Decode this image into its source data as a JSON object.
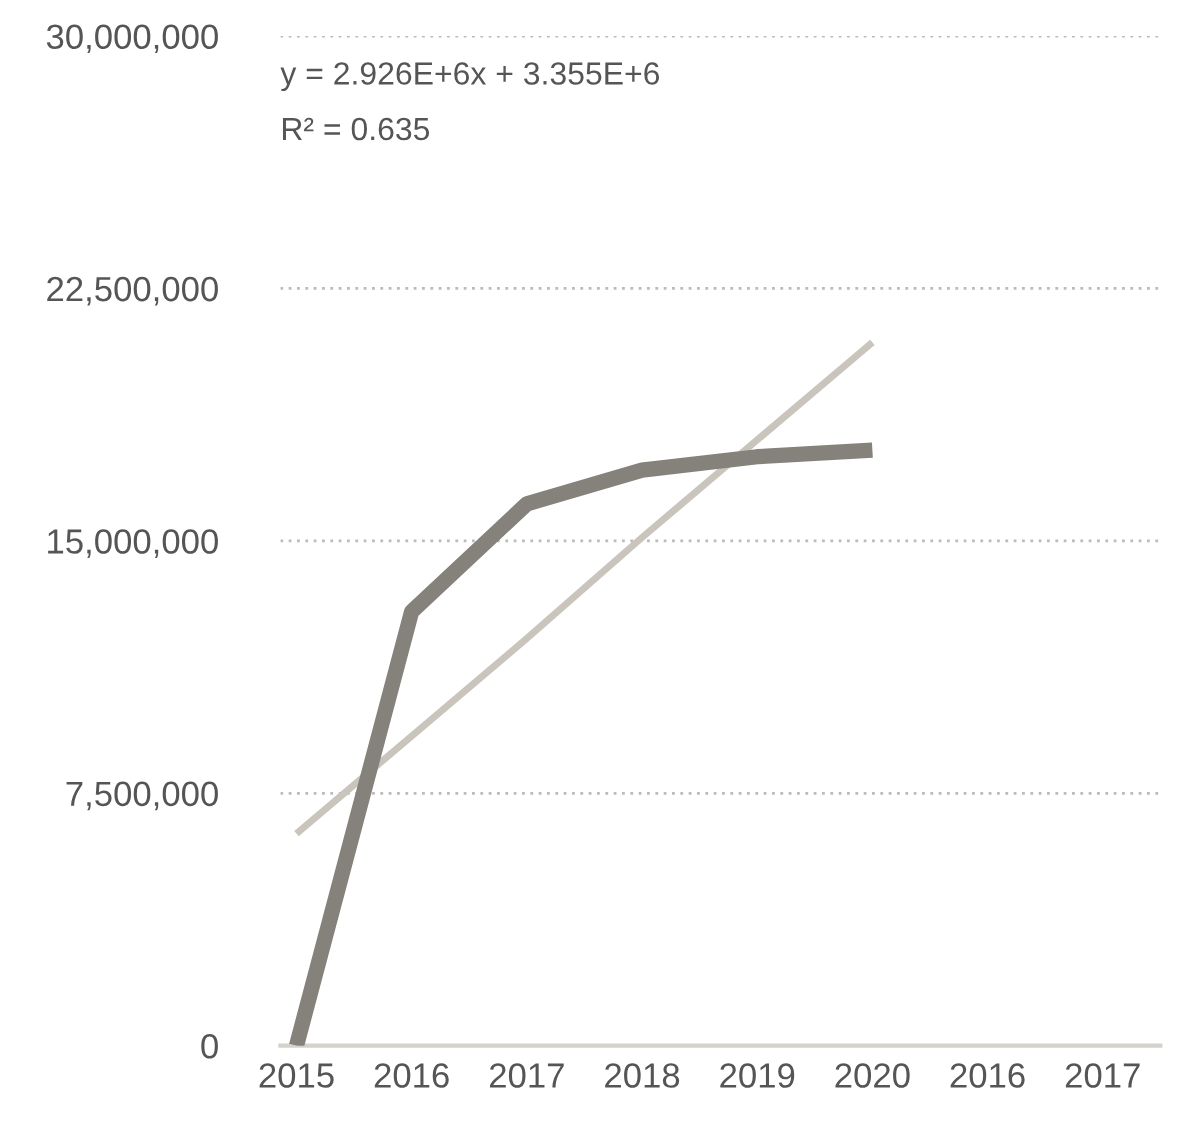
{
  "chart_data": {
    "type": "line",
    "categories": [
      "2015",
      "2016",
      "2017",
      "2018",
      "2019",
      "2020",
      "2016",
      "2017"
    ],
    "series": [
      {
        "color": "#85827c",
        "values": [
          0,
          12900000,
          16100000,
          17100000,
          17500000,
          17700000,
          null,
          null
        ]
      },
      {
        "color": "#c9c5bd",
        "values": [
          6300000,
          9200000,
          12100000,
          15100000,
          18000000,
          20900000,
          null,
          null
        ]
      }
    ],
    "ylim": [
      0,
      30000000
    ],
    "yticks": [
      {
        "value": 0,
        "label": "0"
      },
      {
        "value": 7500000,
        "label": "7,500,000"
      },
      {
        "value": 15000000,
        "label": "15,000,000"
      },
      {
        "value": 22500000,
        "label": "22,500,000"
      },
      {
        "value": 30000000,
        "label": "30,000,000"
      }
    ],
    "grid": "y",
    "annotations": [
      "y = 2.926E+6x + 3.355E+6",
      "R² = 0.635"
    ]
  }
}
